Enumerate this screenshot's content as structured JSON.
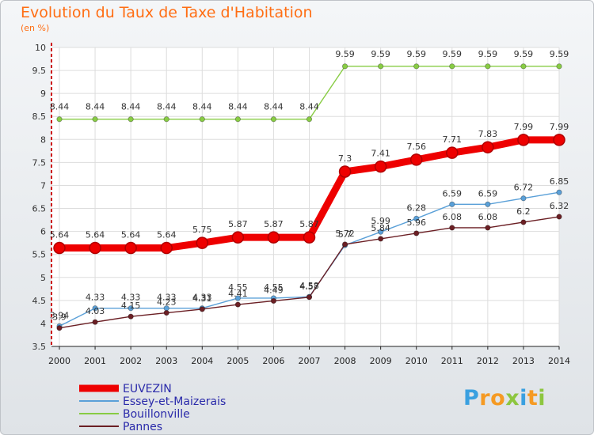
{
  "title": "Evolution du Taux de Taxe d'Habitation",
  "subtitle": "(en %)",
  "logo": {
    "text": "Proxiti",
    "colors": [
      "#3aa0e0",
      "#f59a23",
      "#f59a23",
      "#8dc63f",
      "#3aa0e0",
      "#f59a23",
      "#8dc63f"
    ]
  },
  "chart_data": {
    "type": "line",
    "title": "Evolution du Taux de Taxe d'Habitation",
    "ylabel": "(en %)",
    "xlabel": "",
    "ylim": [
      3.5,
      10
    ],
    "yticks": [
      "3.5",
      "4",
      "4.5",
      "5",
      "5.5",
      "6",
      "6.5",
      "7",
      "7.5",
      "8",
      "8.5",
      "9",
      "9.5",
      "10"
    ],
    "x": [
      "2000",
      "2001",
      "2002",
      "2003",
      "2004",
      "2005",
      "2006",
      "2007",
      "2008",
      "2009",
      "2010",
      "2011",
      "2012",
      "2013",
      "2014"
    ],
    "grid": true,
    "legend": "bottom-left",
    "series": [
      {
        "name": "EUVEZIN",
        "color": "#ee0000",
        "values": [
          5.64,
          5.64,
          5.64,
          5.64,
          5.75,
          5.87,
          5.87,
          5.87,
          7.3,
          7.41,
          7.56,
          7.71,
          7.83,
          7.99,
          7.99
        ],
        "labels": [
          "5.64",
          "5.64",
          "5.64",
          "5.64",
          "5.75",
          "5.87",
          "5.87",
          "5.87",
          "7.3",
          "7.41",
          "7.56",
          "7.71",
          "7.83",
          "7.99",
          "7.99"
        ]
      },
      {
        "name": "Essey-et-Maizerais",
        "color": "#5aa0d8",
        "values": [
          3.94,
          4.33,
          4.33,
          4.33,
          4.33,
          4.55,
          4.55,
          4.58,
          5.7,
          5.99,
          6.28,
          6.59,
          6.59,
          6.72,
          6.85
        ],
        "labels": [
          "3.94",
          "4.33",
          "4.33",
          "4.33",
          "4.33",
          "4.55",
          "4.55",
          "4.58",
          "5.7",
          "5.99",
          "6.28",
          "6.59",
          "6.59",
          "6.72",
          "6.85"
        ]
      },
      {
        "name": "Bouillonville",
        "color": "#88cc44",
        "values": [
          8.44,
          8.44,
          8.44,
          8.44,
          8.44,
          8.44,
          8.44,
          8.44,
          9.59,
          9.59,
          9.59,
          9.59,
          9.59,
          9.59,
          9.59
        ],
        "labels": [
          "8.44",
          "8.44",
          "8.44",
          "8.44",
          "8.44",
          "8.44",
          "8.44",
          "8.44",
          "9.59",
          "9.59",
          "9.59",
          "9.59",
          "9.59",
          "9.59",
          "9.59"
        ]
      },
      {
        "name": "Pannes",
        "color": "#6b1f24",
        "values": [
          3.9,
          4.03,
          4.15,
          4.23,
          4.31,
          4.41,
          4.49,
          4.57,
          5.72,
          5.84,
          5.96,
          6.08,
          6.08,
          6.2,
          6.32
        ],
        "labels": [
          "3.9",
          "4.03",
          "4.15",
          "4.23",
          "4.31",
          "4.41",
          "4.49",
          "4.57",
          "5.72",
          "5.84",
          "5.96",
          "6.08",
          "6.08",
          "6.2",
          "6.32"
        ]
      }
    ]
  }
}
